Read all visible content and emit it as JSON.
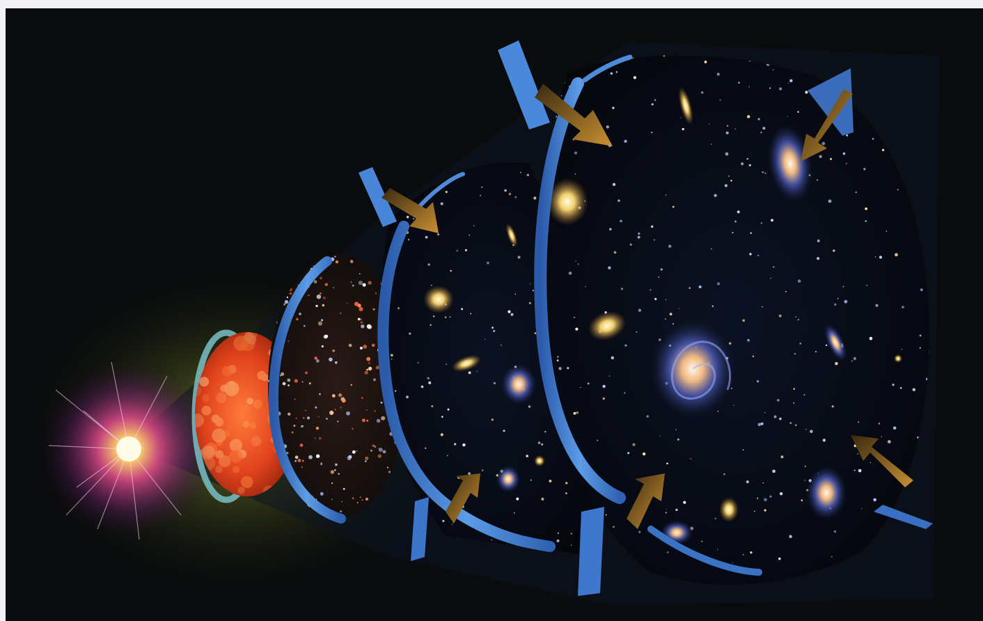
{
  "image": {
    "subject": "artistic-illustration",
    "colors": {
      "page_border": "#f2f2f6",
      "background": "#0a0b0d",
      "ring_blue": "#3f7ed6",
      "ring_highlight": "#7fb4f2",
      "arrow_orange": "#b7852e",
      "early_universe_red": "#e4431c",
      "burst_core": "#fff5c8",
      "burst_glow": "#d2347a"
    },
    "regions": [
      {
        "name": "initial-burst"
      },
      {
        "name": "hot-plasma-disc"
      },
      {
        "name": "first-stars-disc"
      },
      {
        "name": "early-galaxies-disc"
      },
      {
        "name": "modern-galaxies-disc"
      }
    ]
  }
}
